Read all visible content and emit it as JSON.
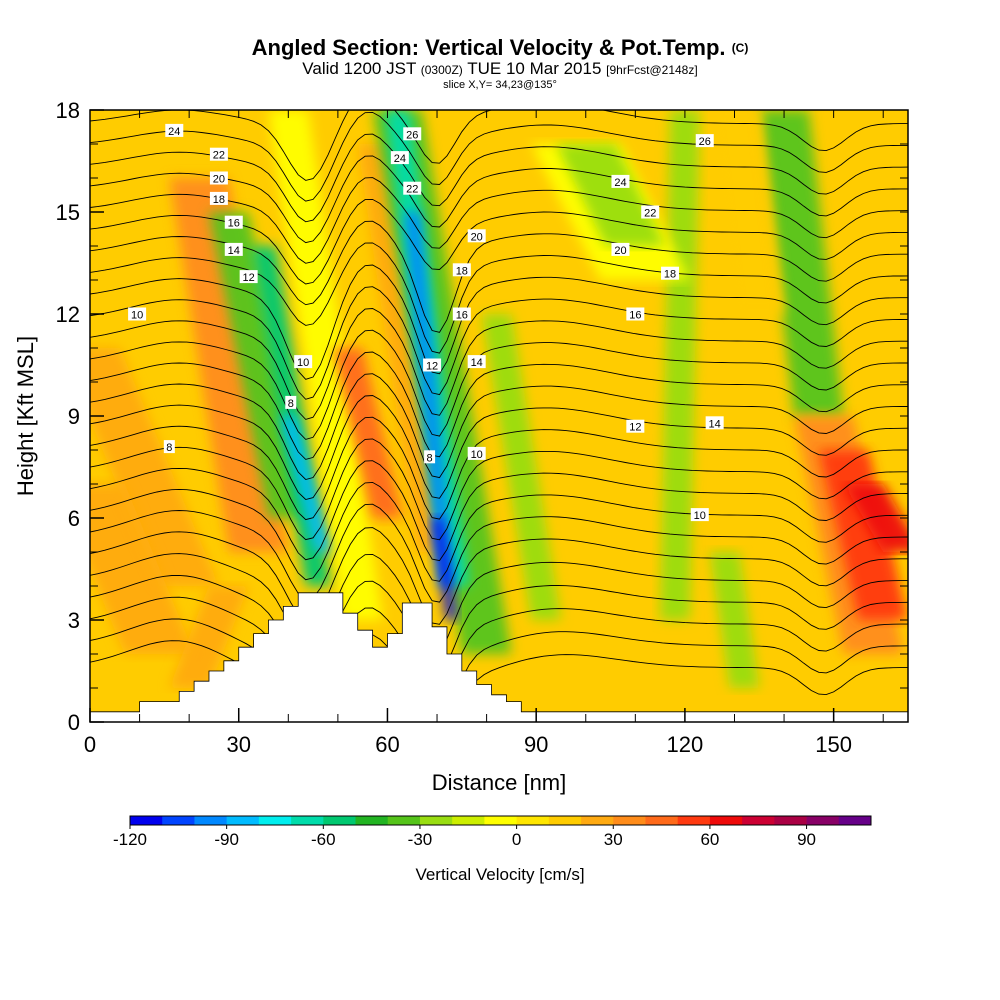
{
  "header": {
    "title_main": "Angled Section: Vertical Velocity & Pot.Temp.",
    "title_unit": "(C)",
    "valid_prefix": "Valid 1200 JST",
    "valid_utc": "(0300Z)",
    "valid_date": "TUE 10 Mar 2015",
    "valid_fcst": "[9hrFcst@2148z]",
    "slice": "slice X,Y= 34,23@135°"
  },
  "chart_data": {
    "type": "heatmap",
    "title": "Angled Section: Vertical Velocity & Pot.Temp. (C)",
    "xlabel": "Distance [nm]",
    "ylabel": "Height [Kft MSL]",
    "xlim": [
      0,
      165
    ],
    "ylim": [
      0,
      18
    ],
    "xticks": [
      0,
      30,
      60,
      90,
      120,
      150
    ],
    "yticks": [
      0,
      3,
      6,
      9,
      12,
      15,
      18
    ],
    "colorbar": {
      "label": "Vertical Velocity [cm/s]",
      "ticks": [
        -120,
        -90,
        -60,
        -30,
        0,
        30,
        60,
        90
      ],
      "min": -120,
      "max": 110,
      "colors": [
        "#0000ee",
        "#0044ff",
        "#0088ff",
        "#00bbff",
        "#00eeee",
        "#00dcaa",
        "#00c870",
        "#22b422",
        "#55c41a",
        "#99dd11",
        "#ccee00",
        "#ffff00",
        "#ffe600",
        "#ffcc00",
        "#ffaa11",
        "#ff8c1a",
        "#ff6a1a",
        "#ff3a10",
        "#ee0a0a",
        "#cc0033",
        "#aa0044",
        "#880066",
        "#660088"
      ]
    },
    "terrain": {
      "description": "masked terrain (white)",
      "x": [
        0,
        10,
        10,
        15,
        18,
        21,
        24,
        27,
        30,
        33,
        36,
        39,
        42,
        45,
        48,
        51,
        54,
        57,
        60,
        63,
        66,
        69,
        72,
        75,
        78,
        81,
        84,
        87,
        90,
        165
      ],
      "height": [
        0.3,
        0.3,
        0.6,
        0.6,
        0.9,
        1.2,
        1.5,
        1.8,
        2.2,
        2.6,
        3.0,
        3.4,
        3.8,
        3.8,
        3.8,
        3.2,
        2.7,
        2.2,
        2.6,
        3.5,
        3.5,
        2.8,
        2.0,
        1.5,
        1.1,
        0.8,
        0.6,
        0.3,
        0.3,
        0.3
      ]
    },
    "velocity_features": [
      {
        "kind": "updraft-band",
        "x_top": 24,
        "x_bottom": 42,
        "peak_cms": 35
      },
      {
        "kind": "downdraft-band",
        "x_top": 58,
        "x_bottom": 72,
        "peak_cms": -115
      },
      {
        "kind": "downdraft-band",
        "x_top": 36,
        "x_bottom": 52,
        "peak_cms": -75
      },
      {
        "kind": "updraft-band",
        "x_top": 51,
        "x_bottom": 62,
        "peak_cms": 50
      },
      {
        "kind": "downdraft-column",
        "x": 130,
        "peak_cms": -40
      },
      {
        "kind": "updraft-column",
        "x": 157,
        "peak_cms": 60
      }
    ],
    "contour_labels": [
      {
        "value": "24",
        "x": 17,
        "z": 17.4
      },
      {
        "value": "22",
        "x": 26,
        "z": 16.7
      },
      {
        "value": "20",
        "x": 26,
        "z": 16.0
      },
      {
        "value": "18",
        "x": 26,
        "z": 15.4
      },
      {
        "value": "16",
        "x": 29,
        "z": 14.7
      },
      {
        "value": "14",
        "x": 29,
        "z": 13.9
      },
      {
        "value": "12",
        "x": 32,
        "z": 13.1
      },
      {
        "value": "10",
        "x": 9.5,
        "z": 12.0
      },
      {
        "value": "8",
        "x": 16,
        "z": 8.1
      },
      {
        "value": "10",
        "x": 43,
        "z": 10.6
      },
      {
        "value": "8",
        "x": 40.5,
        "z": 9.4
      },
      {
        "value": "26",
        "x": 65,
        "z": 17.3
      },
      {
        "value": "24",
        "x": 62.5,
        "z": 16.6
      },
      {
        "value": "22",
        "x": 65,
        "z": 15.7
      },
      {
        "value": "20",
        "x": 78,
        "z": 14.3
      },
      {
        "value": "18",
        "x": 75,
        "z": 13.3
      },
      {
        "value": "16",
        "x": 75,
        "z": 12.0
      },
      {
        "value": "14",
        "x": 78,
        "z": 10.6
      },
      {
        "value": "12",
        "x": 69,
        "z": 10.5
      },
      {
        "value": "8",
        "x": 68.5,
        "z": 7.8
      },
      {
        "value": "10",
        "x": 78,
        "z": 7.9
      },
      {
        "value": "26",
        "x": 124,
        "z": 17.1
      },
      {
        "value": "24",
        "x": 107,
        "z": 15.9
      },
      {
        "value": "22",
        "x": 113,
        "z": 15.0
      },
      {
        "value": "20",
        "x": 107,
        "z": 13.9
      },
      {
        "value": "18",
        "x": 117,
        "z": 13.2
      },
      {
        "value": "16",
        "x": 110,
        "z": 12.0
      },
      {
        "value": "14",
        "x": 126,
        "z": 8.8
      },
      {
        "value": "12",
        "x": 110,
        "z": 8.7
      },
      {
        "value": "10",
        "x": 123,
        "z": 6.1
      }
    ]
  }
}
